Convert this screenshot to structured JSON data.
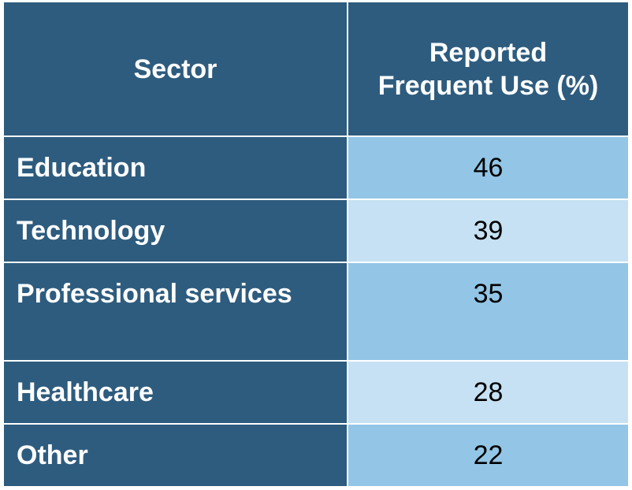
{
  "table": {
    "header": [
      "Sector",
      "Reported Frequent Use (%)"
    ],
    "rows": [
      [
        "Education",
        46
      ],
      [
        "Technology",
        39
      ],
      [
        "Professional services",
        35
      ],
      [
        "Healthcare",
        28
      ],
      [
        "Other",
        22
      ]
    ]
  }
}
